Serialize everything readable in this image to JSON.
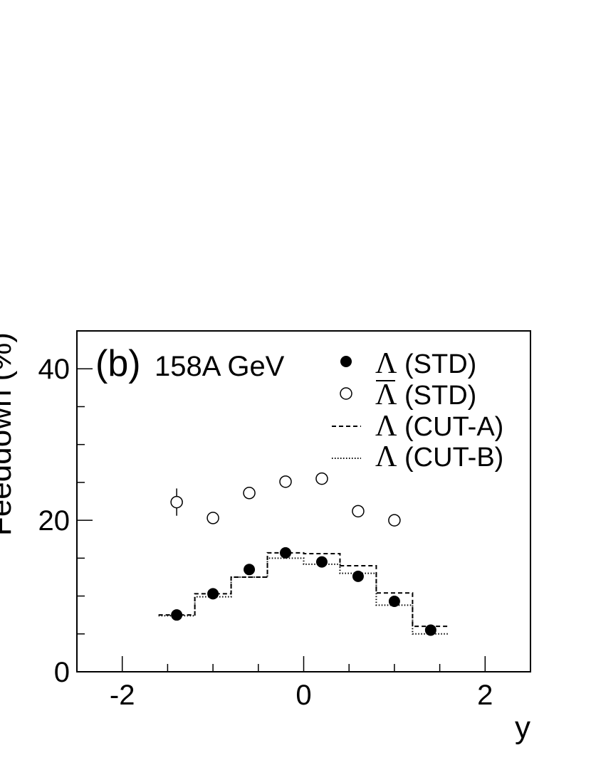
{
  "chart_data": {
    "type": "scatter",
    "panel_label": "(b)",
    "energy_label": "158A GeV",
    "xlabel": "y",
    "ylabel": "Feeddown (%)",
    "xlim": [
      -2.5,
      2.5
    ],
    "ylim": [
      0,
      45
    ],
    "x_ticks": [
      -2,
      0,
      2
    ],
    "y_ticks": [
      0,
      20,
      40
    ],
    "x_tick_labels": [
      "-2",
      "0",
      "2"
    ],
    "y_tick_labels": [
      "0",
      "20",
      "40"
    ],
    "grid": false,
    "legend_position": "top-right",
    "series": [
      {
        "name": "Λ (STD)",
        "style": "filled-circle",
        "x": [
          -1.4,
          -1.0,
          -0.6,
          -0.2,
          0.2,
          0.6,
          1.0,
          1.4
        ],
        "y": [
          7.5,
          10.3,
          13.5,
          15.7,
          14.5,
          12.6,
          9.3,
          5.5
        ]
      },
      {
        "name": "Λ̄ (STD)",
        "style": "open-circle",
        "x": [
          -1.4,
          -1.0,
          -0.6,
          -0.2,
          0.2,
          0.6,
          1.0
        ],
        "y": [
          22.4,
          20.3,
          23.6,
          25.1,
          25.5,
          21.2,
          20.0
        ],
        "err": [
          1.8,
          0,
          0,
          0,
          0,
          0,
          0
        ]
      },
      {
        "name": "Λ (CUT-A)",
        "style": "dashed-histogram",
        "edges": [
          -1.6,
          -1.2,
          -0.8,
          -0.4,
          0.0,
          0.4,
          0.8,
          1.2,
          1.6
        ],
        "values": [
          7.5,
          10.3,
          12.5,
          15.7,
          15.6,
          14.0,
          10.4,
          6.0
        ]
      },
      {
        "name": "Λ (CUT-B)",
        "style": "dotted-histogram",
        "edges": [
          -1.6,
          -1.2,
          -0.8,
          -0.4,
          0.0,
          0.4,
          0.8,
          1.2,
          1.6
        ],
        "values": [
          7.4,
          9.9,
          12.5,
          15.0,
          14.2,
          13.0,
          8.8,
          5.0
        ]
      }
    ],
    "legend": [
      {
        "symbol": "Λ",
        "label": " (STD)",
        "bar": false
      },
      {
        "symbol": "Λ",
        "label": " (STD)",
        "bar": true
      },
      {
        "symbol": "Λ",
        "label": " (CUT-A)",
        "bar": false
      },
      {
        "symbol": "Λ",
        "label": " (CUT-B)",
        "bar": false
      }
    ]
  }
}
